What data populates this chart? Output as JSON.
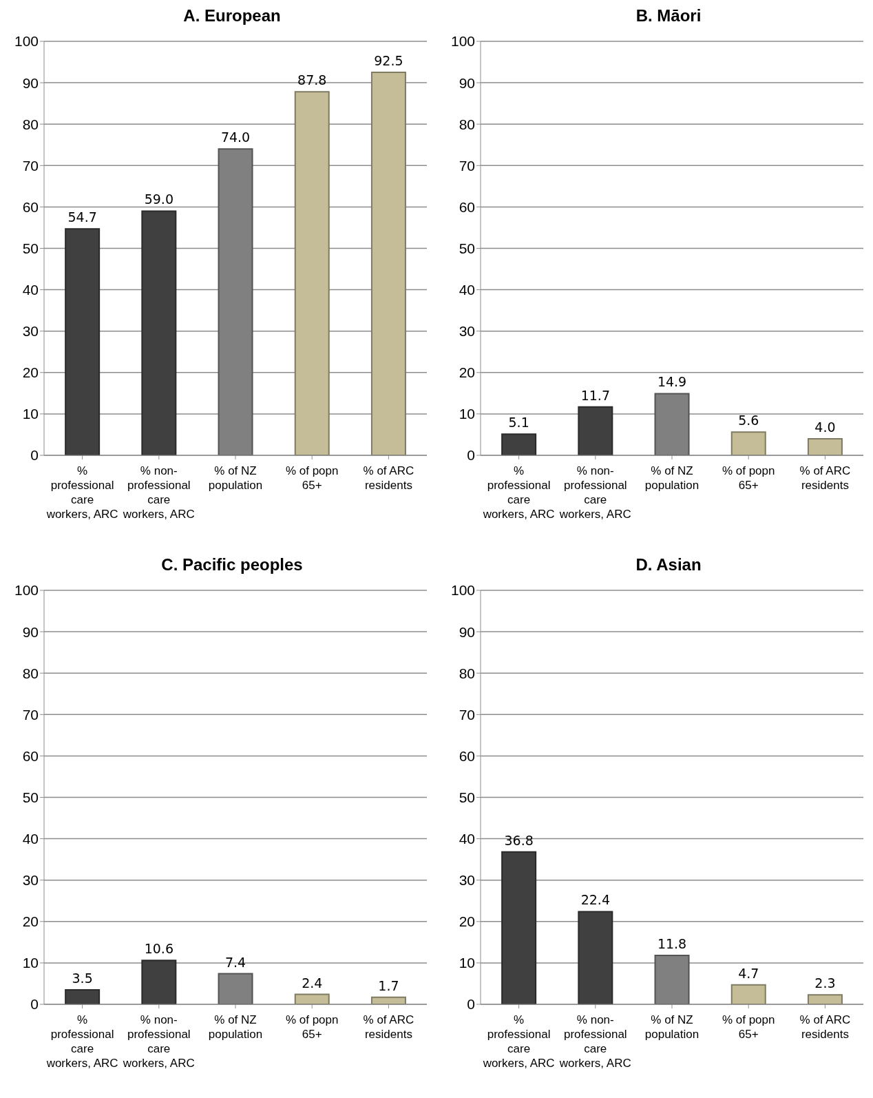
{
  "chart_data": [
    {
      "type": "bar",
      "title": "A. European",
      "categories": [
        "% professional care workers, ARC",
        "% non-professional care workers, ARC",
        "% of NZ population",
        "% of popn 65+",
        "% of ARC residents"
      ],
      "values": [
        54.7,
        59.0,
        74.0,
        87.8,
        92.5
      ],
      "value_labels": [
        "54.7",
        "59.0",
        "74.0",
        "87.8",
        "92.5"
      ],
      "colors": [
        "#404040",
        "#404040",
        "#808080",
        "#c4bd97",
        "#c4bd97"
      ],
      "ylim": [
        0,
        100
      ],
      "yticks": [
        0,
        10,
        20,
        30,
        40,
        50,
        60,
        70,
        80,
        90,
        100
      ],
      "grid": "y",
      "legend": false
    },
    {
      "type": "bar",
      "title": "B. Māori",
      "categories": [
        "% professional care workers, ARC",
        "% non-professional care workers, ARC",
        "% of NZ population",
        "% of popn 65+",
        "% of ARC residents"
      ],
      "values": [
        5.1,
        11.7,
        14.9,
        5.6,
        4.0
      ],
      "value_labels": [
        "5.1",
        "11.7",
        "14.9",
        "5.6",
        "4.0"
      ],
      "colors": [
        "#404040",
        "#404040",
        "#808080",
        "#c4bd97",
        "#c4bd97"
      ],
      "ylim": [
        0,
        100
      ],
      "yticks": [
        0,
        10,
        20,
        30,
        40,
        50,
        60,
        70,
        80,
        90,
        100
      ],
      "grid": "y",
      "legend": false
    },
    {
      "type": "bar",
      "title": "C. Pacific peoples",
      "categories": [
        "% professional care workers, ARC",
        "% non-professional care workers, ARC",
        "% of NZ population",
        "% of popn 65+",
        "% of ARC residents"
      ],
      "values": [
        3.5,
        10.6,
        7.4,
        2.4,
        1.7
      ],
      "value_labels": [
        "3.5",
        "10.6",
        "7.4",
        "2.4",
        "1.7"
      ],
      "colors": [
        "#404040",
        "#404040",
        "#808080",
        "#c4bd97",
        "#c4bd97"
      ],
      "ylim": [
        0,
        100
      ],
      "yticks": [
        0,
        10,
        20,
        30,
        40,
        50,
        60,
        70,
        80,
        90,
        100
      ],
      "grid": "y",
      "legend": false
    },
    {
      "type": "bar",
      "title": "D. Asian",
      "categories": [
        "% professional care workers, ARC",
        "% non-professional care workers, ARC",
        "% of NZ population",
        "% of popn 65+",
        "% of ARC residents"
      ],
      "values": [
        36.8,
        22.4,
        11.8,
        4.7,
        2.3
      ],
      "value_labels": [
        "36.8",
        "22.4",
        "11.8",
        "4.7",
        "2.3"
      ],
      "colors": [
        "#404040",
        "#404040",
        "#808080",
        "#c4bd97",
        "#c4bd97"
      ],
      "ylim": [
        0,
        100
      ],
      "yticks": [
        0,
        10,
        20,
        30,
        40,
        50,
        60,
        70,
        80,
        90,
        100
      ],
      "grid": "y",
      "legend": false
    }
  ]
}
